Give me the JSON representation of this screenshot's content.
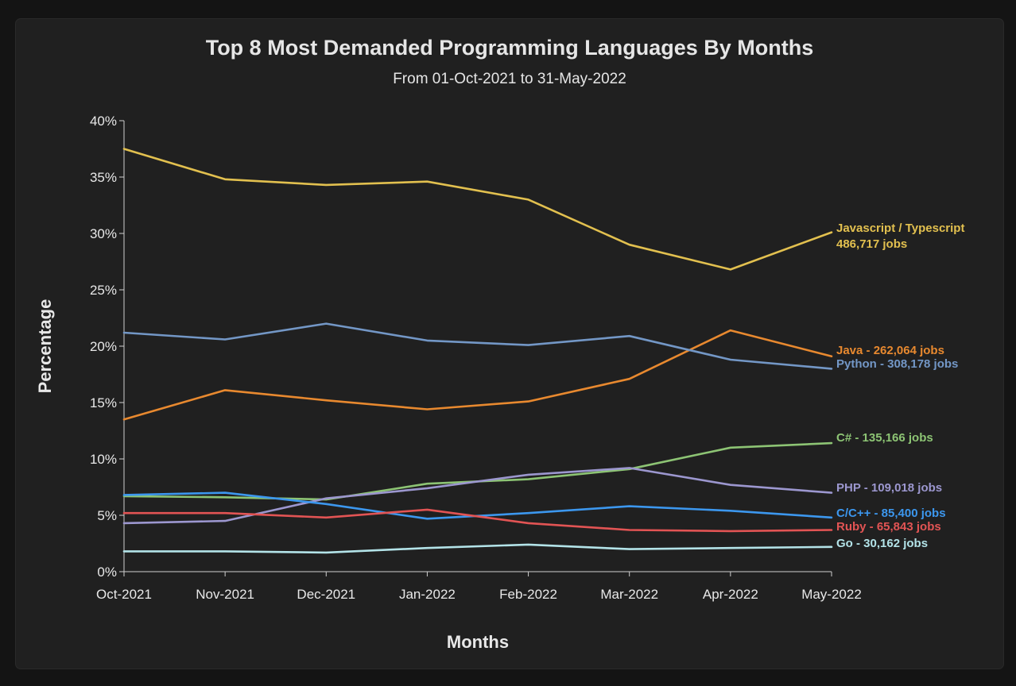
{
  "chart_data": {
    "type": "line",
    "title": "Top 8 Most Demanded Programming Languages By Months",
    "subtitle": "From 01-Oct-2021 to 31-May-2022",
    "xlabel": "Months",
    "ylabel": "Percentage",
    "ylim": [
      0,
      40
    ],
    "yticks": [
      "0%",
      "5%",
      "10%",
      "15%",
      "20%",
      "25%",
      "30%",
      "35%",
      "40%"
    ],
    "categories": [
      "Oct-2021",
      "Nov-2021",
      "Dec-2021",
      "Jan-2022",
      "Feb-2022",
      "Mar-2022",
      "Apr-2022",
      "May-2022"
    ],
    "series": [
      {
        "name": "Javascript / Typescript",
        "label_lines": [
          "Javascript / Typescript",
          "486,717 jobs"
        ],
        "color": "#e2c04f",
        "values": [
          37.5,
          34.8,
          34.3,
          34.6,
          33.0,
          29.0,
          26.8,
          30.1
        ]
      },
      {
        "name": "Java",
        "label_lines": [
          "Java - 262,064 jobs"
        ],
        "color": "#e8892f",
        "values": [
          13.5,
          16.1,
          15.2,
          14.4,
          15.1,
          17.1,
          21.4,
          19.1
        ]
      },
      {
        "name": "Python",
        "label_lines": [
          "Python - 308,178 jobs"
        ],
        "color": "#7397c6",
        "values": [
          21.2,
          20.6,
          22.0,
          20.5,
          20.1,
          20.9,
          18.8,
          18.0
        ]
      },
      {
        "name": "C#",
        "label_lines": [
          "C# - 135,166 jobs"
        ],
        "color": "#8dc474",
        "values": [
          6.7,
          6.6,
          6.4,
          7.8,
          8.2,
          9.1,
          11.0,
          11.4
        ]
      },
      {
        "name": "PHP",
        "label_lines": [
          "PHP - 109,018 jobs"
        ],
        "color": "#9c97cf",
        "values": [
          4.3,
          4.5,
          6.5,
          7.4,
          8.6,
          9.2,
          7.7,
          7.0
        ]
      },
      {
        "name": "C/C++",
        "label_lines": [
          "C/C++ - 85,400 jobs"
        ],
        "color": "#3c97ee",
        "values": [
          6.8,
          7.0,
          6.0,
          4.7,
          5.2,
          5.8,
          5.4,
          4.8
        ]
      },
      {
        "name": "Ruby",
        "label_lines": [
          "Ruby - 65,843 jobs"
        ],
        "color": "#e25454",
        "values": [
          5.2,
          5.2,
          4.8,
          5.5,
          4.3,
          3.7,
          3.6,
          3.7
        ]
      },
      {
        "name": "Go",
        "label_lines": [
          "Go - 30,162 jobs"
        ],
        "color": "#b3e3e8",
        "values": [
          1.8,
          1.8,
          1.7,
          2.1,
          2.4,
          2.0,
          2.1,
          2.2
        ]
      }
    ]
  }
}
